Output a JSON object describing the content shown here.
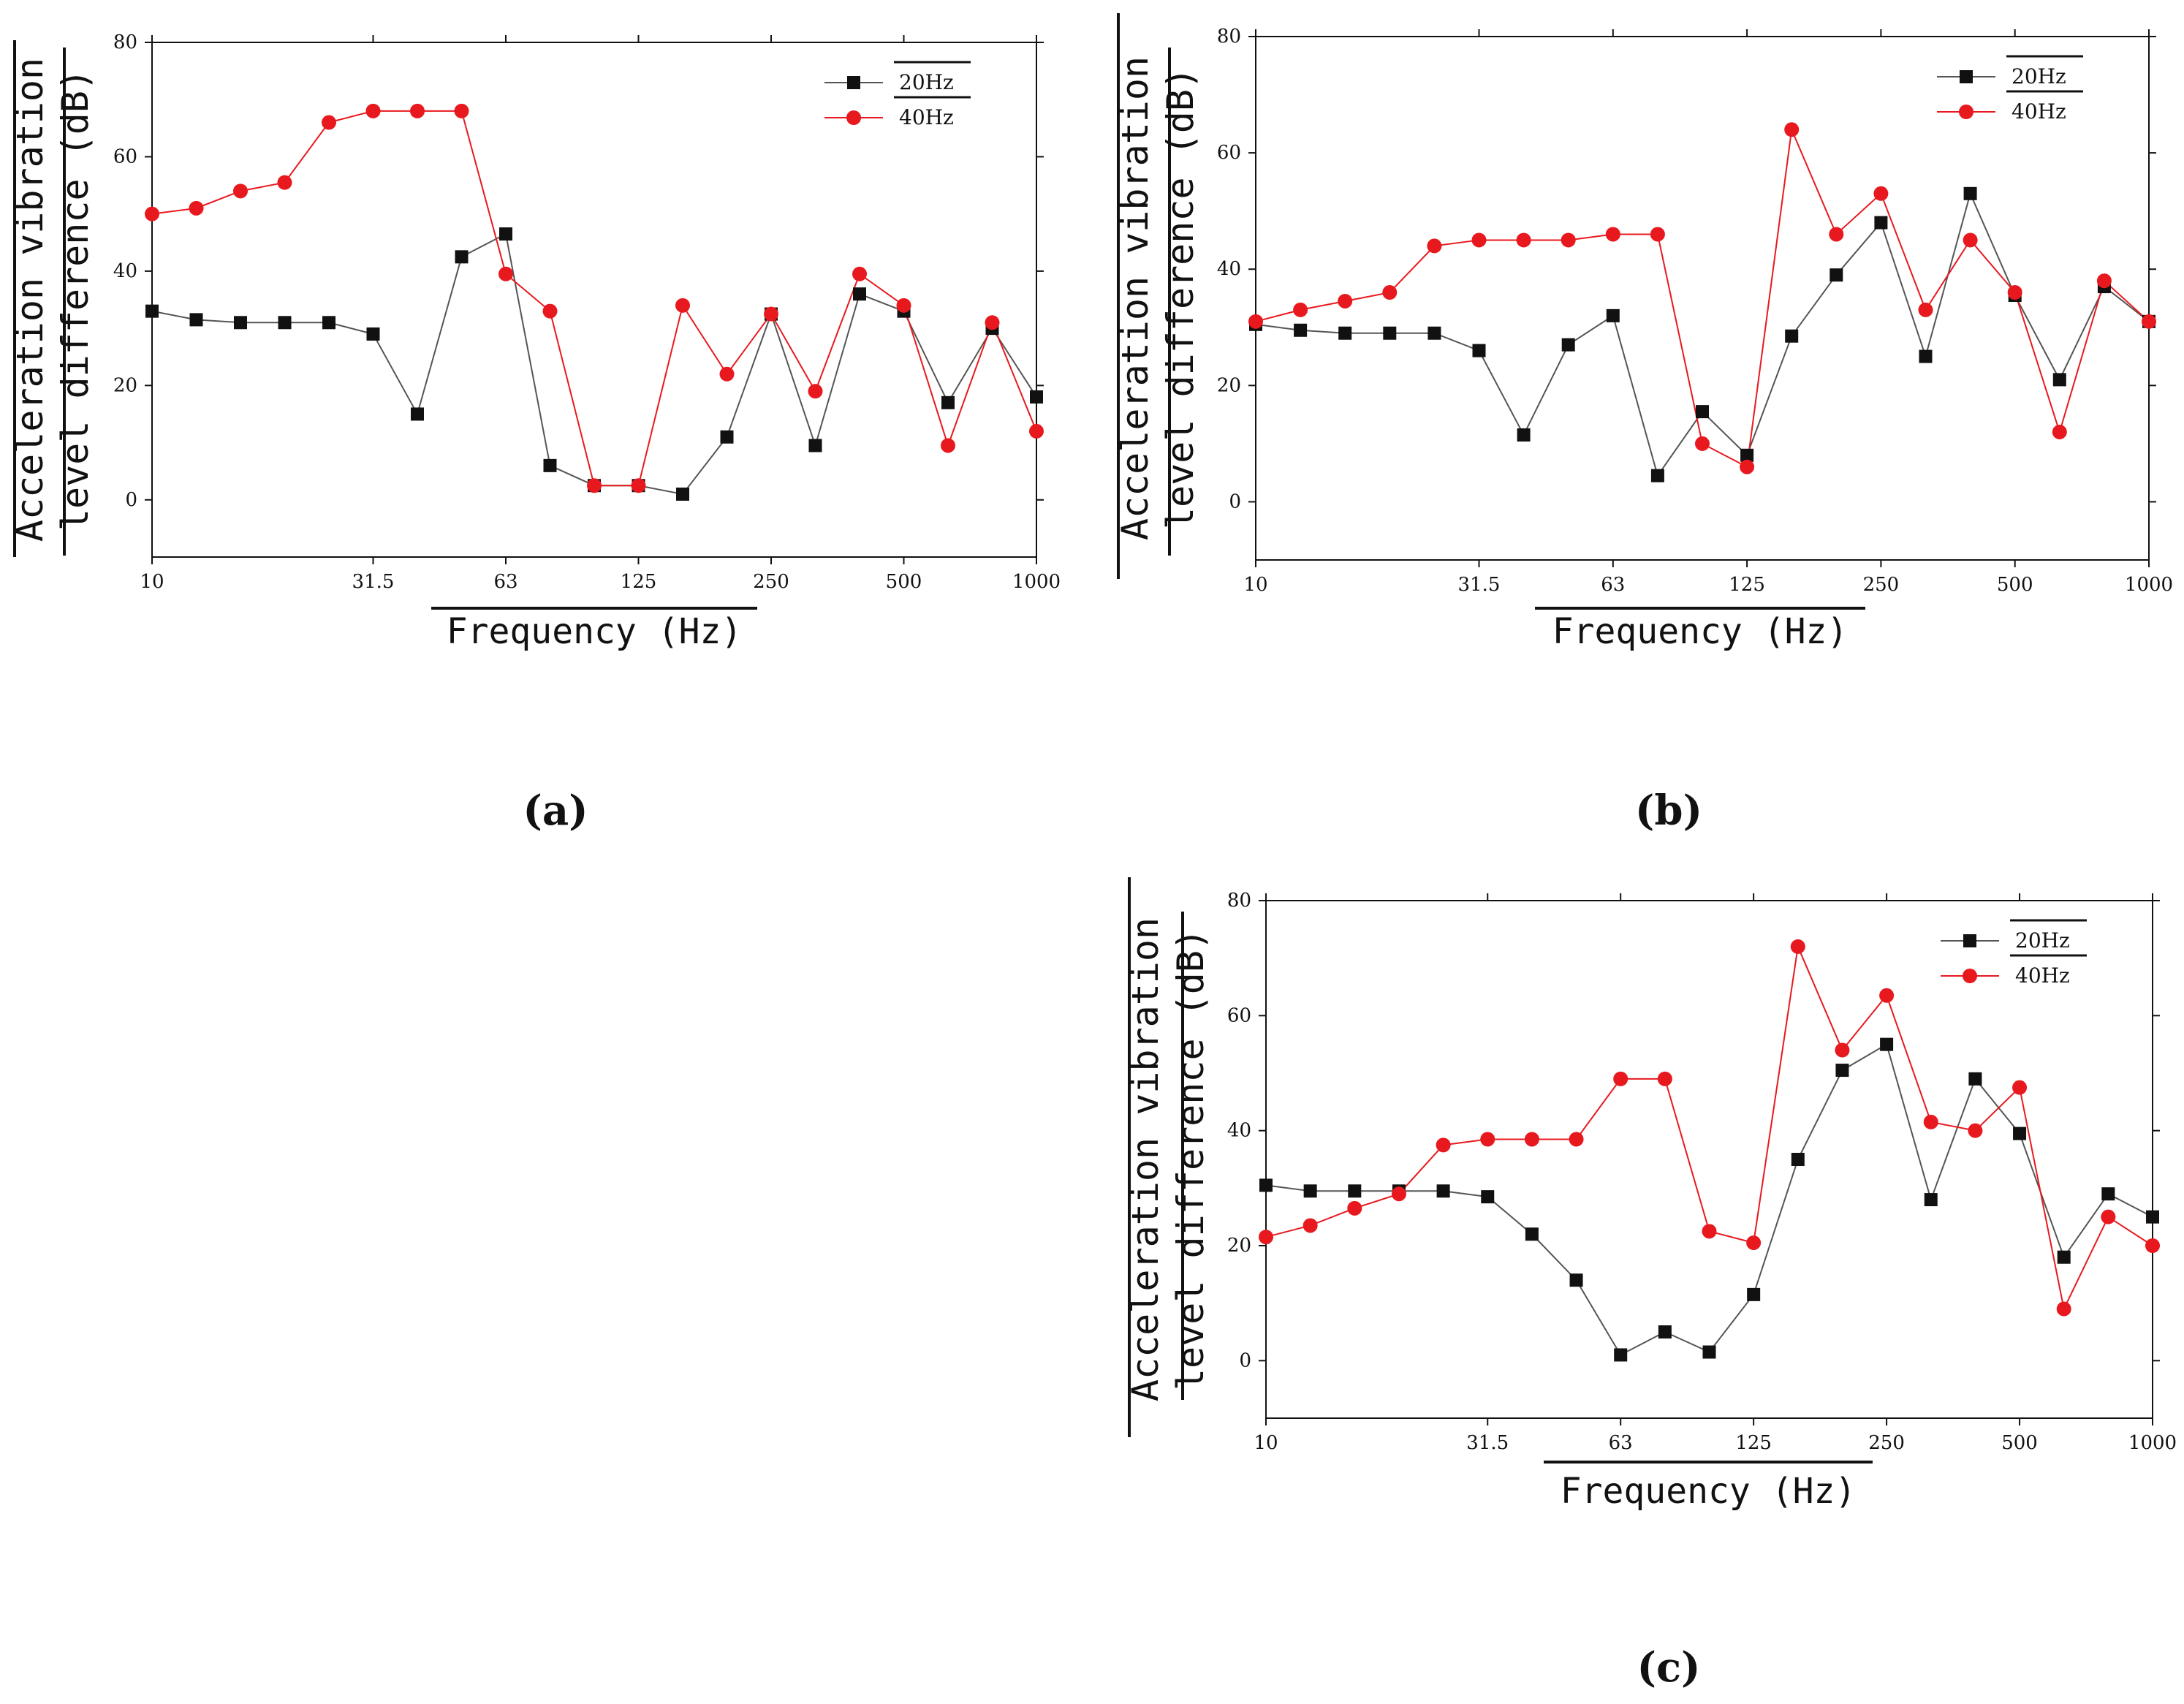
{
  "figure": {
    "colors": {
      "s20": "#111111",
      "s40": "#e8191e",
      "line20": "#555555",
      "line40": "#e8191e",
      "axis": "#111111"
    }
  },
  "chart_data": [
    {
      "type": "line",
      "panel_label": "(a)",
      "xlabel": "Frequency (Hz)",
      "ylabel_line1": "Acceleration vibration",
      "ylabel_line2": "level difference (dB)",
      "ylim": [
        -10,
        80
      ],
      "yticks": [
        "0",
        "20",
        "40",
        "60",
        "80"
      ],
      "xticks": [
        "10",
        "31.5",
        "63",
        "125",
        "250",
        "500",
        "1000"
      ],
      "x": [
        "10",
        "12.5",
        "16",
        "20",
        "25",
        "31.5",
        "40",
        "50",
        "63",
        "80",
        "100",
        "125",
        "160",
        "200",
        "250",
        "315",
        "400",
        "500",
        "630",
        "800",
        "1000"
      ],
      "legend": [
        "20Hz",
        "40Hz"
      ],
      "series": [
        {
          "name": "20Hz",
          "values": [
            33,
            31.5,
            31,
            31,
            31,
            29,
            15,
            42.5,
            46.5,
            6,
            2.5,
            2.5,
            1,
            11,
            32.5,
            9.5,
            36,
            33,
            17,
            30,
            18
          ]
        },
        {
          "name": "40Hz",
          "values": [
            50,
            51,
            54,
            55.5,
            66,
            68,
            68,
            68,
            39.5,
            33,
            2.5,
            2.5,
            34,
            22,
            32.5,
            19,
            39.5,
            34,
            9.5,
            31,
            12
          ]
        }
      ]
    },
    {
      "type": "line",
      "panel_label": "(b)",
      "xlabel": "Frequency (Hz)",
      "ylabel_line1": "Acceleration vibration",
      "ylabel_line2": "level difference (dB)",
      "ylim": [
        -10,
        80
      ],
      "yticks": [
        "0",
        "20",
        "40",
        "60",
        "80"
      ],
      "xticks": [
        "10",
        "31.5",
        "63",
        "125",
        "250",
        "500",
        "1000"
      ],
      "x": [
        "10",
        "12.5",
        "16",
        "20",
        "25",
        "31.5",
        "40",
        "50",
        "63",
        "80",
        "100",
        "125",
        "160",
        "200",
        "250",
        "315",
        "400",
        "500",
        "630",
        "800",
        "1000"
      ],
      "legend": [
        "20Hz",
        "40Hz"
      ],
      "series": [
        {
          "name": "20Hz",
          "values": [
            30.5,
            29.5,
            29,
            29,
            29,
            26,
            11.5,
            27,
            32,
            4.5,
            15.5,
            8,
            28.5,
            39,
            48,
            25,
            53,
            35.5,
            21,
            37,
            31
          ]
        },
        {
          "name": "40Hz",
          "values": [
            31,
            33,
            34.5,
            36,
            44,
            45,
            45,
            45,
            46,
            46,
            10,
            6,
            64,
            46,
            53,
            33,
            45,
            36,
            12,
            38,
            31
          ]
        }
      ]
    },
    {
      "type": "line",
      "panel_label": "(c)",
      "xlabel": "Frequency (Hz)",
      "ylabel_line1": "Acceleration vibration",
      "ylabel_line2": "level difference (dB)",
      "ylim": [
        -10,
        80
      ],
      "yticks": [
        "0",
        "20",
        "40",
        "60",
        "80"
      ],
      "xticks": [
        "10",
        "31.5",
        "63",
        "125",
        "250",
        "500",
        "1000"
      ],
      "x": [
        "10",
        "12.5",
        "16",
        "20",
        "25",
        "31.5",
        "40",
        "50",
        "63",
        "80",
        "100",
        "125",
        "160",
        "200",
        "250",
        "315",
        "400",
        "500",
        "630",
        "800",
        "1000"
      ],
      "legend": [
        "20Hz",
        "40Hz"
      ],
      "series": [
        {
          "name": "20Hz",
          "values": [
            30.5,
            29.5,
            29.5,
            29.5,
            29.5,
            28.5,
            22,
            14,
            1,
            5,
            1.5,
            11.5,
            35,
            50.5,
            55,
            28,
            49,
            39.5,
            18,
            29,
            25
          ]
        },
        {
          "name": "40Hz",
          "values": [
            21.5,
            23.5,
            26.5,
            29,
            37.5,
            38.5,
            38.5,
            38.5,
            49,
            49,
            22.5,
            20.5,
            72,
            54,
            63.5,
            41.5,
            40,
            47.5,
            9,
            25,
            20
          ]
        }
      ]
    }
  ]
}
